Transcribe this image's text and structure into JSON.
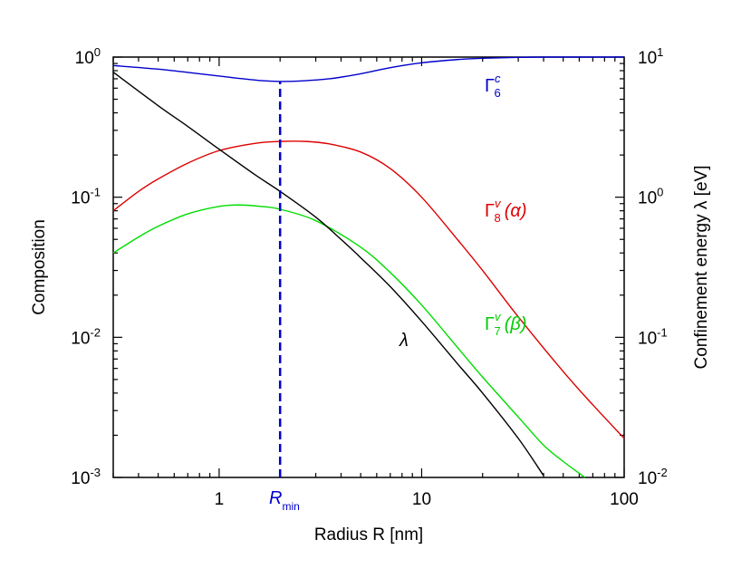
{
  "chart_data": {
    "type": "line",
    "xlabel": "Radius R [nm]",
    "ylabel_left": "Composition",
    "ylabel_right": "Confinement energy λ [eV]",
    "x_scale": "log",
    "y_left_scale": "log",
    "y_right_scale": "log",
    "xlim": [
      0.3,
      100
    ],
    "ylim_left": [
      0.001,
      1
    ],
    "ylim_right": [
      0.01,
      10
    ],
    "x_ticks": [
      {
        "value": 1,
        "label": "1"
      },
      {
        "value": 10,
        "label": "10"
      },
      {
        "value": 100,
        "label": "100"
      }
    ],
    "y_left_ticks": [
      {
        "value": 1,
        "mant": "10",
        "exp": "0"
      },
      {
        "value": 0.1,
        "mant": "10",
        "exp": "-1"
      },
      {
        "value": 0.01,
        "mant": "10",
        "exp": "-2"
      },
      {
        "value": 0.001,
        "mant": "10",
        "exp": "-3"
      }
    ],
    "y_right_ticks": [
      {
        "value": 10,
        "mant": "10",
        "exp": "1"
      },
      {
        "value": 1,
        "mant": "10",
        "exp": "0"
      },
      {
        "value": 0.1,
        "mant": "10",
        "exp": "-1"
      },
      {
        "value": 0.01,
        "mant": "10",
        "exp": "-2"
      }
    ],
    "series": [
      {
        "key": "gamma6c",
        "axis": "left",
        "color": "#0000cc",
        "x": [
          0.3,
          0.5,
          0.8,
          1.2,
          1.6,
          2.0,
          2.5,
          3.5,
          5,
          7,
          10,
          15,
          20,
          30,
          40,
          60,
          100
        ],
        "y": [
          0.87,
          0.82,
          0.76,
          0.71,
          0.68,
          0.67,
          0.675,
          0.7,
          0.76,
          0.84,
          0.91,
          0.96,
          0.98,
          0.995,
          1.0,
          1.0,
          1.0
        ]
      },
      {
        "key": "gamma8v",
        "axis": "left",
        "color": "#dd0000",
        "x": [
          0.3,
          0.4,
          0.5,
          0.7,
          1.0,
          1.5,
          2.0,
          2.7,
          3.5,
          5,
          7,
          10,
          15,
          20,
          30,
          50,
          70,
          100
        ],
        "y": [
          0.08,
          0.11,
          0.135,
          0.175,
          0.215,
          0.242,
          0.25,
          0.25,
          0.24,
          0.21,
          0.16,
          0.1,
          0.05,
          0.03,
          0.014,
          0.0057,
          0.0033,
          0.0019
        ]
      },
      {
        "key": "gamma7v",
        "axis": "left",
        "color": "#00dd00",
        "x": [
          0.3,
          0.4,
          0.5,
          0.7,
          1.0,
          1.25,
          1.6,
          2.0,
          3.0,
          5,
          7,
          10,
          15,
          20,
          30,
          40,
          50,
          64
        ],
        "y": [
          0.04,
          0.052,
          0.062,
          0.076,
          0.086,
          0.088,
          0.086,
          0.082,
          0.068,
          0.044,
          0.029,
          0.017,
          0.0085,
          0.0052,
          0.0027,
          0.0017,
          0.0013,
          0.001
        ]
      },
      {
        "key": "lambda",
        "axis": "right",
        "color": "#000000",
        "x": [
          0.3,
          0.5,
          0.7,
          1.0,
          1.5,
          2.0,
          3.0,
          4.0,
          5.0,
          7.0,
          10,
          15,
          20,
          30,
          40
        ],
        "y": [
          7.8,
          4.5,
          3.2,
          2.2,
          1.45,
          1.1,
          0.72,
          0.5,
          0.37,
          0.23,
          0.13,
          0.065,
          0.04,
          0.019,
          0.0103
        ]
      }
    ],
    "marker_line": {
      "x": 2.0,
      "color": "#0000cc",
      "style": "dashed"
    }
  },
  "annotations": {
    "gamma6c": {
      "main": "Γ",
      "sub": "6",
      "sup": "c",
      "suffix": ""
    },
    "gamma8v": {
      "main": "Γ",
      "sub": "8",
      "sup": "v",
      "suffix": "(α)"
    },
    "gamma7v": {
      "main": "Γ",
      "sub": "7",
      "sup": "v",
      "suffix": "(β)"
    },
    "lambda": {
      "main": "λ"
    },
    "rmin": {
      "main": "R",
      "sub": "min"
    }
  }
}
